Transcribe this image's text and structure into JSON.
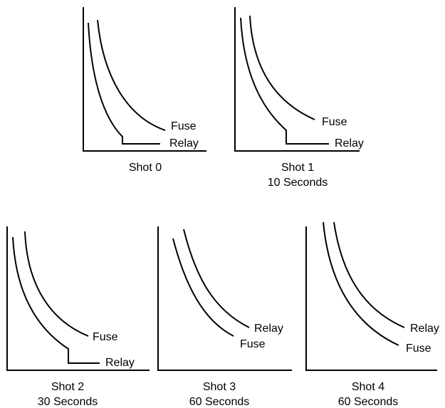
{
  "panels": [
    {
      "caption": [
        "Shot 0"
      ],
      "labels": {
        "fuse": "Fuse",
        "relay": "Relay"
      }
    },
    {
      "caption": [
        "Shot 1",
        "10 Seconds"
      ],
      "labels": {
        "fuse": "Fuse",
        "relay": "Relay"
      }
    },
    {
      "caption": [
        "Shot 2",
        "30 Seconds"
      ],
      "labels": {
        "fuse": "Fuse",
        "relay": "Relay"
      }
    },
    {
      "caption": [
        "Shot 3",
        "60 Seconds"
      ],
      "labels": {
        "fuse": "Fuse",
        "relay": "Relay"
      }
    },
    {
      "caption": [
        "Shot 4",
        "60 Seconds"
      ],
      "labels": {
        "fuse": "Fuse",
        "relay": "Relay"
      }
    }
  ]
}
